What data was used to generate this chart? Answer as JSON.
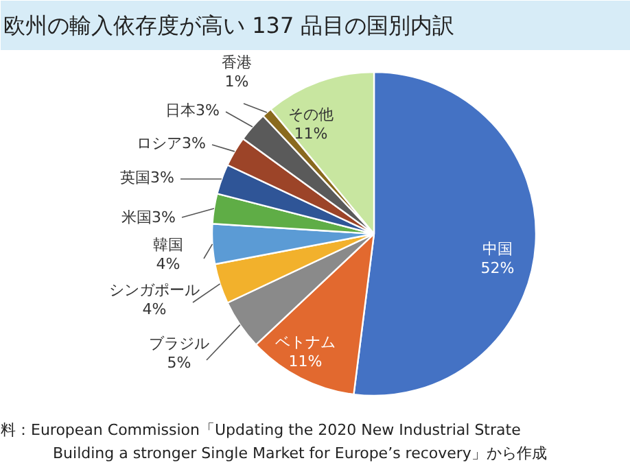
{
  "chart_data": {
    "type": "pie",
    "title": "欧州の輸入依存度が高い 137 品目の国別内訳",
    "categories": [
      "中国",
      "ベトナム",
      "ブラジル",
      "シンガポール",
      "韓国",
      "米国",
      "英国",
      "ロシア",
      "日本",
      "香港",
      "その他"
    ],
    "values": [
      52,
      11,
      5,
      4,
      4,
      3,
      3,
      3,
      3,
      1,
      11
    ],
    "colors": [
      "#4472c4",
      "#e2692f",
      "#8a8a8a",
      "#f2b12c",
      "#5b9bd5",
      "#5fad46",
      "#2f5597",
      "#9c4428",
      "#5a5a5a",
      "#8a6a1e",
      "#c8e6a0"
    ],
    "value_labels": [
      "52%",
      "11%",
      "5%",
      "4%",
      "4%",
      "3%",
      "3%",
      "3%",
      "3%",
      "1%",
      "11%"
    ],
    "annotations": [
      "料：European Commission「Updating the 2020 New Industrial Strate",
      "Building a stronger Single Market for Europe’s recovery」から作成"
    ]
  }
}
